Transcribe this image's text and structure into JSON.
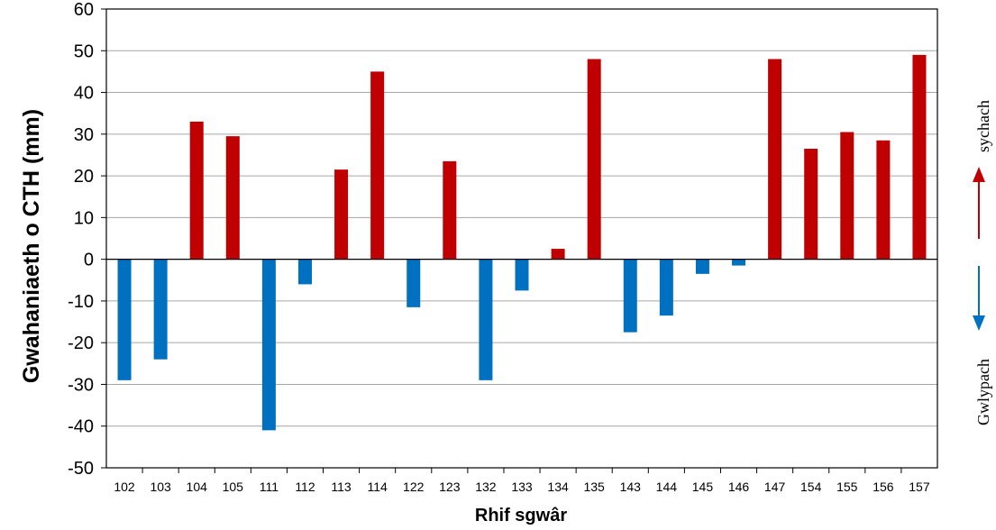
{
  "chart_data": {
    "type": "bar",
    "title": "",
    "xlabel": "Rhif sgwâr",
    "ylabel": "Gwahaniaeth o CTH (mm)",
    "ylim": [
      -50,
      60
    ],
    "yticks": [
      60,
      50,
      40,
      30,
      20,
      10,
      0,
      -10,
      -20,
      -30,
      -40,
      -50
    ],
    "grid": true,
    "categories": [
      "102",
      "103",
      "104",
      "105",
      "111",
      "112",
      "113",
      "114",
      "122",
      "123",
      "132",
      "133",
      "134",
      "135",
      "143",
      "144",
      "145",
      "146",
      "147",
      "154",
      "155",
      "156",
      "157"
    ],
    "values": [
      -29,
      -24,
      33,
      29.5,
      -41,
      -6,
      21.5,
      45,
      -11.5,
      23.5,
      -29,
      -7.5,
      2.5,
      48,
      -17.5,
      -13.5,
      -3.5,
      -1.5,
      48,
      26.5,
      30.5,
      28.5,
      49
    ],
    "colors": {
      "positive": "#c00000",
      "negative": "#0070c0"
    },
    "annotations": {
      "upper": {
        "text": "sychach",
        "color": "#c00000",
        "arrow": "up"
      },
      "lower": {
        "text": "Gwlypach",
        "color": "#0070c0",
        "arrow": "down"
      }
    }
  }
}
